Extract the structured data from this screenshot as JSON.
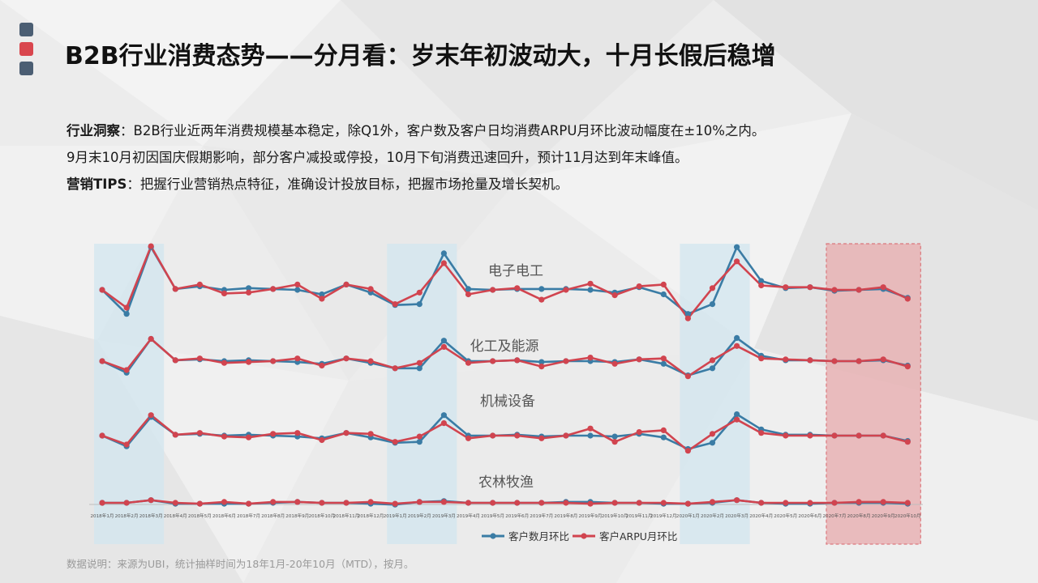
{
  "title": "B2B行业消费态势——分月看：岁末年初波动大，十月长假后稳增",
  "insight": {
    "label1": "行业洞察",
    "colon1": "：",
    "text1": "B2B行业近两年消费规模基本稳定，除Q1外，客户数及客户日均消费ARPU月环比波动幅度在±10%之内。",
    "text2": "9月末10月初因国庆假期影响，部分客户减投或停投，10月下旬消费迅速回升，预计11月达到年末峰值。",
    "label3": "营销TIPS",
    "colon3": "：",
    "text3": "把握行业营销热点特征，准确设计投放目标，把握市场抢量及增长契机。"
  },
  "note": "数据说明：来源为UBI，统计抽样时间为18年1月-20年10月（MTD），按月。",
  "colors": {
    "customers": "#3a7ca5",
    "arpu": "#d1444f",
    "highlight_blue": "#d1e5ef",
    "highlight_red": "#e8b3b5",
    "deco_dark": "#4b5e73",
    "deco_red": "#d9464e"
  },
  "chart_data": {
    "type": "line",
    "x": [
      "2018年1月",
      "2018年2月",
      "2018年3月",
      "2018年4月",
      "2018年5月",
      "2018年6月",
      "2018年7月",
      "2018年8月",
      "2018年9月",
      "2018年10月",
      "2018年11月",
      "2018年12月",
      "2019年1月",
      "2019年2月",
      "2019年3月",
      "2019年4月",
      "2019年5月",
      "2019年6月",
      "2019年7月",
      "2019年8月",
      "2019年9月",
      "2019年10月",
      "2019年11月",
      "2019年12月",
      "2020年1月",
      "2020年2月",
      "2020年3月",
      "2020年4月",
      "2020年5月",
      "2020年6月",
      "2020年7月",
      "2020年8月",
      "2020年9月",
      "2020年10月"
    ],
    "legend": [
      {
        "key": "customers",
        "label": "客户数月环比"
      },
      {
        "key": "arpu",
        "label": "客户ARPU月环比"
      }
    ],
    "legend_position": "bottom-center",
    "highlight_ranges": [
      {
        "from": 0,
        "to": 2,
        "color": "blue"
      },
      {
        "from": 12,
        "to": 14,
        "color": "blue"
      },
      {
        "from": 24,
        "to": 26,
        "color": "blue"
      },
      {
        "from": 30,
        "to": 33,
        "color": "red"
      }
    ],
    "panels": [
      {
        "name": "电子电工",
        "customers": [
          0,
          -27,
          48,
          1,
          4,
          0,
          2,
          1,
          0,
          -5,
          6,
          -3,
          -17,
          -16,
          41,
          1,
          0,
          1,
          1,
          1,
          0,
          -3,
          3,
          -5,
          -27,
          -16,
          48,
          10,
          2,
          3,
          -1,
          0,
          1,
          -9
        ],
        "arpu": [
          0,
          -20,
          49,
          1,
          6,
          -4,
          -3,
          1,
          6,
          -10,
          6,
          1,
          -16,
          -3,
          30,
          -5,
          0,
          2,
          -11,
          0,
          7,
          -6,
          4,
          6,
          -32,
          2,
          32,
          5,
          3,
          3,
          0,
          0,
          3,
          -10
        ]
      },
      {
        "name": "化工及能源",
        "customers": [
          0,
          -13,
          25,
          1,
          2,
          0,
          1,
          0,
          -1,
          -3,
          3,
          -2,
          -8,
          -8,
          23,
          0,
          0,
          1,
          -1,
          0,
          0,
          -1,
          2,
          -3,
          -16,
          -8,
          26,
          6,
          1,
          1,
          0,
          0,
          1,
          -5
        ],
        "arpu": [
          0,
          -10,
          25,
          1,
          3,
          -2,
          -1,
          0,
          3,
          -5,
          3,
          0,
          -8,
          -2,
          16,
          -2,
          0,
          1,
          -6,
          0,
          4,
          -3,
          2,
          3,
          -17,
          1,
          17,
          3,
          2,
          1,
          0,
          0,
          2,
          -6
        ]
      },
      {
        "name": "机械设备",
        "customers": [
          0,
          -12,
          21,
          1,
          2,
          0,
          1,
          0,
          -1,
          -3,
          3,
          -2,
          -8,
          -7,
          23,
          0,
          0,
          1,
          -1,
          0,
          0,
          -1,
          2,
          -2,
          -15,
          -8,
          24,
          7,
          1,
          1,
          0,
          0,
          0,
          -6
        ],
        "arpu": [
          0,
          -10,
          23,
          1,
          3,
          -1,
          -2,
          2,
          3,
          -5,
          3,
          2,
          -7,
          -1,
          14,
          -3,
          0,
          0,
          -3,
          0,
          8,
          -7,
          4,
          6,
          -17,
          2,
          18,
          3,
          0,
          0,
          0,
          0,
          0,
          -7
        ]
      },
      {
        "name": "农林牧渔",
        "customers": [
          0,
          0,
          3,
          -1,
          -1,
          -1,
          -1,
          0,
          1,
          0,
          0,
          -1,
          -2,
          1,
          2,
          0,
          0,
          0,
          0,
          1,
          1,
          0,
          0,
          -1,
          -1,
          0,
          3,
          0,
          -1,
          -1,
          0,
          0,
          0,
          -1
        ],
        "arpu": [
          0,
          0,
          3,
          0,
          -1,
          1,
          -1,
          1,
          1,
          0,
          0,
          1,
          -1,
          1,
          1,
          0,
          0,
          0,
          0,
          0,
          -1,
          0,
          0,
          0,
          -1,
          1,
          3,
          0,
          0,
          0,
          0,
          1,
          1,
          0
        ]
      }
    ]
  }
}
